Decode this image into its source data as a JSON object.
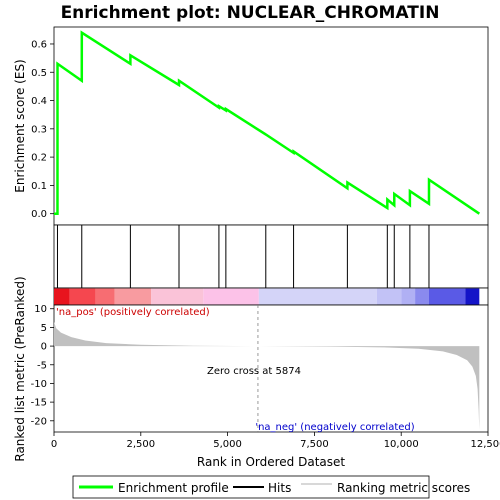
{
  "chart_data": {
    "type": "line",
    "title": "Enrichment plot: NUCLEAR_CHROMATIN",
    "colors": {
      "es_line": "#00ff00",
      "hits": "#000000",
      "metric_fill": "#c0c0c0",
      "pos_annot": "#cc0000",
      "neg_annot": "#0000cc",
      "zero_line": "#808080"
    },
    "top_panel": {
      "ylabel": "Enrichment score (ES)",
      "ylim": [
        -0.04,
        0.66
      ],
      "yticks": [
        0.0,
        0.1,
        0.2,
        0.3,
        0.4,
        0.5,
        0.6
      ],
      "ytick_labels": [
        "0.0",
        "0.1",
        "0.2",
        "0.3",
        "0.4",
        "0.5",
        "0.6"
      ],
      "es_curve": {
        "x": [
          0,
          100,
          101,
          800,
          801,
          2200,
          2201,
          3600,
          3601,
          4750,
          4751,
          4950,
          4951,
          6100,
          6101,
          6900,
          6901,
          8450,
          8451,
          9600,
          9601,
          9800,
          9801,
          10250,
          10251,
          10800,
          10801,
          12250
        ],
        "y": [
          0.0,
          0.0,
          0.53,
          0.47,
          0.64,
          0.53,
          0.56,
          0.455,
          0.47,
          0.375,
          0.38,
          0.365,
          0.37,
          0.28,
          0.28,
          0.215,
          0.22,
          0.09,
          0.11,
          0.02,
          0.05,
          0.03,
          0.07,
          0.03,
          0.08,
          0.035,
          0.12,
          0.0
        ]
      }
    },
    "hits_panel": {
      "positions": [
        100,
        800,
        2200,
        3600,
        4750,
        4950,
        6100,
        6900,
        8450,
        9600,
        9800,
        10250,
        10800
      ]
    },
    "color_bar": {
      "segments": [
        {
          "from": 0,
          "to": 450,
          "color": "#e8141e"
        },
        {
          "from": 450,
          "to": 1200,
          "color": "#f5474f"
        },
        {
          "from": 1200,
          "to": 1750,
          "color": "#f76d72"
        },
        {
          "from": 1750,
          "to": 2800,
          "color": "#f89ba0"
        },
        {
          "from": 2800,
          "to": 4300,
          "color": "#fac3d8"
        },
        {
          "from": 4300,
          "to": 5900,
          "color": "#fcc2e8"
        },
        {
          "from": 5900,
          "to": 9300,
          "color": "#d4d4f8"
        },
        {
          "from": 9300,
          "to": 10000,
          "color": "#c2c2f6"
        },
        {
          "from": 10000,
          "to": 10400,
          "color": "#b0b0f4"
        },
        {
          "from": 10400,
          "to": 10800,
          "color": "#8a8aee"
        },
        {
          "from": 10800,
          "to": 11850,
          "color": "#5a5ae6"
        },
        {
          "from": 11850,
          "to": 12250,
          "color": "#1414c8"
        }
      ]
    },
    "bottom_panel": {
      "ylabel": "Ranked list metric (PreRanked)",
      "xlabel": "Rank in Ordered Dataset",
      "xlim": [
        0,
        12500
      ],
      "ylim": [
        -23,
        11
      ],
      "xticks": [
        0,
        2500,
        5000,
        7500,
        10000,
        12500
      ],
      "xtick_labels": [
        "0",
        "2,500",
        "5,000",
        "7,500",
        "10,000",
        "12,500"
      ],
      "yticks": [
        10,
        5,
        0,
        -5,
        -10,
        -15,
        -20
      ],
      "ytick_labels": [
        "10",
        "5",
        "0",
        "-5",
        "-10",
        "-15",
        "-20"
      ],
      "metric_curve": {
        "x": [
          0,
          60,
          200,
          500,
          900,
          1500,
          2500,
          4000,
          5874,
          8000,
          9500,
          10500,
          11200,
          11600,
          11900,
          12050,
          12150,
          12200,
          12230,
          12250
        ],
        "y": [
          6.5,
          4.8,
          3.6,
          2.4,
          1.5,
          0.8,
          0.35,
          0.1,
          0.0,
          -0.15,
          -0.35,
          -0.7,
          -1.4,
          -2.4,
          -3.8,
          -5.5,
          -8.0,
          -11.5,
          -17.0,
          -22.5
        ]
      },
      "zero_cross": 5874,
      "zero_cross_label": "Zero cross at 5874",
      "pos_label": "'na_pos' (positively correlated)",
      "neg_label": "'na_neg' (negatively correlated)"
    },
    "legend": {
      "entries": [
        "Enrichment profile",
        "Hits",
        "Ranking metric scores"
      ],
      "placement": "bottom"
    }
  }
}
